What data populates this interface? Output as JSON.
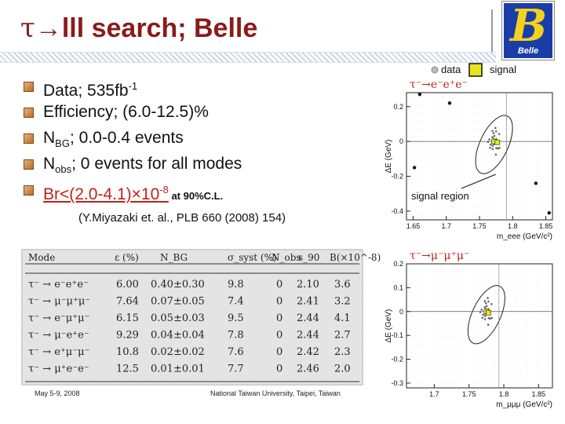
{
  "title": {
    "tau": "τ",
    "arrow": "→",
    "rest": "lll search; Belle"
  },
  "logo": {
    "letter": "B",
    "label": "Belle"
  },
  "bullets": {
    "b1_text": "Data; 535fb",
    "b1_sup": "-1",
    "b2_text": "Efficiency; (6.0-12.5)%",
    "b3_pre": "N",
    "b3_sub": "BG",
    "b3_post": "; 0.0-0.4 events",
    "b4_pre": "N",
    "b4_sub": "obs",
    "b4_post": "; 0 events for all modes",
    "b5_text": "Br<(2.0-4.1)×10",
    "b5_sup": "-8",
    "b5_small": " at 90%C.L."
  },
  "reference": "(Y.Miyazaki et. al., PLB 660 (2008) 154)",
  "table": {
    "headers": [
      "Mode",
      "ε (%)",
      "N_BG",
      "σ_syst (%)",
      "N_obs",
      "s_90",
      "B(×10^-8)"
    ],
    "rows": [
      {
        "mode": "τ⁻ → e⁻e⁺e⁻",
        "eff": "6.00",
        "nbg": "0.40±0.30",
        "sys": "9.8",
        "nobs": "0",
        "s90": "2.10",
        "br": "3.6"
      },
      {
        "mode": "τ⁻ → μ⁻μ⁺μ⁻",
        "eff": "7.64",
        "nbg": "0.07±0.05",
        "sys": "7.4",
        "nobs": "0",
        "s90": "2.41",
        "br": "3.2"
      },
      {
        "mode": "τ⁻ → e⁻μ⁺μ⁻",
        "eff": "6.15",
        "nbg": "0.05±0.03",
        "sys": "9.5",
        "nobs": "0",
        "s90": "2.44",
        "br": "4.1"
      },
      {
        "mode": "τ⁻ → μ⁻e⁺e⁻",
        "eff": "9.29",
        "nbg": "0.04±0.04",
        "sys": "7.8",
        "nobs": "0",
        "s90": "2.44",
        "br": "2.7"
      },
      {
        "mode": "τ⁻ → e⁺μ⁻μ⁻",
        "eff": "10.8",
        "nbg": "0.02±0.02",
        "sys": "7.6",
        "nobs": "0",
        "s90": "2.42",
        "br": "2.3"
      },
      {
        "mode": "τ⁻ → μ⁺e⁻e⁻",
        "eff": "12.5",
        "nbg": "0.01±0.01",
        "sys": "7.7",
        "nobs": "0",
        "s90": "2.46",
        "br": "2.0"
      }
    ]
  },
  "footer": {
    "date": "May 5-9, 2008",
    "institution": "National Taiwan University, Taipei, Taiwan"
  },
  "legend": {
    "data": "data",
    "signal": "signal"
  },
  "chart_data": [
    {
      "type": "scatter",
      "title": "τ⁻→e⁻e⁺e⁻",
      "xlabel": "m_eee (GeV/c²)",
      "ylabel": "ΔE (GeV)",
      "xlim": [
        1.64,
        1.86
      ],
      "ylim": [
        -0.45,
        0.28
      ],
      "x_ticks": [
        "1.65",
        "1.7",
        "1.75",
        "1.8",
        "1.85"
      ],
      "y_ticks": [
        "0.2",
        "0",
        "-0.2",
        "-0.4"
      ],
      "annotation": "signal region",
      "data_points": [
        {
          "x": 1.66,
          "y": 0.27
        },
        {
          "x": 1.652,
          "y": -0.15
        },
        {
          "x": 1.835,
          "y": -0.24
        },
        {
          "x": 1.855,
          "y": -0.41
        },
        {
          "x": 1.705,
          "y": 0.22
        }
      ],
      "signal_region_points": [
        {
          "x": 1.772,
          "y": 0.0
        },
        {
          "x": 1.777,
          "y": -0.005
        }
      ]
    },
    {
      "type": "scatter",
      "title": "τ⁻→μ⁻μ⁺μ⁻",
      "xlabel": "m_μμμ (GeV/c²)",
      "ylabel": "ΔE (GeV)",
      "xlim": [
        1.66,
        1.87
      ],
      "ylim": [
        -0.32,
        0.2
      ],
      "x_ticks": [
        "1.7",
        "1.75",
        "1.8",
        "1.85"
      ],
      "y_ticks": [
        "0.2",
        "0.1",
        "0",
        "-0.1",
        "-0.2",
        "-0.3"
      ],
      "data_points": [],
      "signal_region_points": [
        {
          "x": 1.775,
          "y": 0.0
        },
        {
          "x": 1.778,
          "y": -0.005
        }
      ]
    }
  ]
}
